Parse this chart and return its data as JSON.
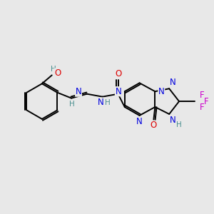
{
  "background_color": "#e8e8e8",
  "atom_colors": {
    "C": "#000000",
    "N": "#0000dd",
    "O": "#dd0000",
    "F": "#cc00cc",
    "H": "#4a8f8f"
  },
  "bond_color": "#000000",
  "figsize": [
    3.0,
    3.0
  ],
  "dpi": 100,
  "lw": 1.4,
  "fs": 8.5,
  "fs_small": 7.5
}
